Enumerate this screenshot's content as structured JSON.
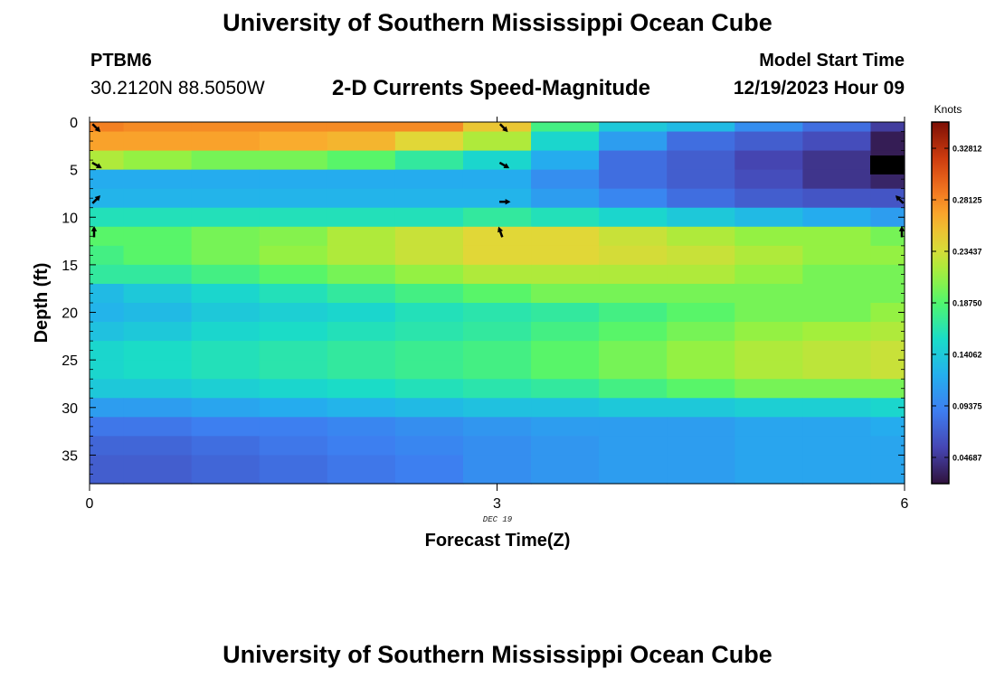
{
  "header": {
    "title": "University of Southern Mississippi Ocean Cube",
    "station": "PTBM6",
    "coordinates": "30.2120N  88.5050W",
    "subtitle": "2-D Currents Speed-Magnitude",
    "model_start_label": "Model Start Time",
    "model_start_value": "12/19/2023 Hour 09"
  },
  "footer": {
    "title": "University of Southern Mississippi Ocean Cube"
  },
  "chart_data": {
    "type": "heatmap",
    "title": "2-D Currents Speed-Magnitude",
    "xlabel": "Forecast Time(Z)",
    "ylabel": "Depth (ft)",
    "date_label": "DEC 19",
    "xlim": [
      0,
      6
    ],
    "ylim": [
      38,
      0
    ],
    "x_ticks": [
      0,
      3,
      6
    ],
    "x_tick_labels": [
      "0",
      "3",
      "6"
    ],
    "y_ticks": [
      0,
      5,
      10,
      15,
      20,
      25,
      30,
      35
    ],
    "y_tick_labels": [
      "0",
      "5",
      "10",
      "15",
      "20",
      "25",
      "30",
      "35"
    ],
    "time_columns": [
      0,
      0.5,
      1,
      1.5,
      2,
      2.5,
      3,
      3.5,
      4,
      4.5,
      5,
      5.5,
      6
    ],
    "depth_rows": [
      {
        "depth": 0,
        "values": [
          0.285,
          0.28,
          0.28,
          0.28,
          0.28,
          0.28,
          0.25,
          0.18,
          0.14,
          0.13,
          0.1,
          0.08,
          0.05
        ]
      },
      {
        "depth": 2,
        "values": [
          0.27,
          0.27,
          0.27,
          0.265,
          0.26,
          0.24,
          0.22,
          0.15,
          0.11,
          0.08,
          0.07,
          0.06,
          0.03
        ]
      },
      {
        "depth": 4,
        "values": [
          0.22,
          0.21,
          0.2,
          0.2,
          0.19,
          0.17,
          0.15,
          0.12,
          0.08,
          0.07,
          0.055,
          0.045,
          0.03
        ]
      },
      {
        "depth": 6,
        "values": [
          0.12,
          0.12,
          0.12,
          0.12,
          0.12,
          0.12,
          0.12,
          0.1,
          0.08,
          0.07,
          0.06,
          0.045,
          0.035
        ]
      },
      {
        "depth": 8,
        "values": [
          0.125,
          0.125,
          0.125,
          0.125,
          0.125,
          0.125,
          0.125,
          0.11,
          0.095,
          0.08,
          0.07,
          0.065,
          0.065
        ]
      },
      {
        "depth": 10,
        "values": [
          0.16,
          0.16,
          0.16,
          0.16,
          0.16,
          0.16,
          0.17,
          0.16,
          0.15,
          0.14,
          0.13,
          0.12,
          0.11
        ]
      },
      {
        "depth": 12,
        "values": [
          0.19,
          0.19,
          0.2,
          0.205,
          0.22,
          0.23,
          0.24,
          0.24,
          0.23,
          0.22,
          0.21,
          0.21,
          0.2
        ]
      },
      {
        "depth": 14,
        "values": [
          0.18,
          0.19,
          0.2,
          0.21,
          0.22,
          0.23,
          0.24,
          0.24,
          0.235,
          0.23,
          0.22,
          0.21,
          0.21
        ]
      },
      {
        "depth": 16,
        "values": [
          0.17,
          0.17,
          0.18,
          0.19,
          0.2,
          0.21,
          0.22,
          0.22,
          0.22,
          0.22,
          0.21,
          0.2,
          0.2
        ]
      },
      {
        "depth": 18,
        "values": [
          0.13,
          0.14,
          0.15,
          0.16,
          0.17,
          0.18,
          0.19,
          0.2,
          0.2,
          0.2,
          0.2,
          0.2,
          0.2
        ]
      },
      {
        "depth": 20,
        "values": [
          0.125,
          0.13,
          0.14,
          0.145,
          0.15,
          0.16,
          0.165,
          0.17,
          0.18,
          0.19,
          0.2,
          0.2,
          0.21
        ]
      },
      {
        "depth": 22,
        "values": [
          0.135,
          0.14,
          0.15,
          0.155,
          0.16,
          0.165,
          0.17,
          0.18,
          0.19,
          0.2,
          0.21,
          0.215,
          0.22
        ]
      },
      {
        "depth": 24,
        "values": [
          0.15,
          0.155,
          0.16,
          0.165,
          0.17,
          0.175,
          0.18,
          0.19,
          0.2,
          0.21,
          0.22,
          0.225,
          0.23
        ]
      },
      {
        "depth": 26,
        "values": [
          0.15,
          0.155,
          0.16,
          0.165,
          0.17,
          0.175,
          0.18,
          0.19,
          0.2,
          0.21,
          0.22,
          0.225,
          0.23
        ]
      },
      {
        "depth": 28,
        "values": [
          0.14,
          0.14,
          0.145,
          0.15,
          0.155,
          0.16,
          0.165,
          0.17,
          0.18,
          0.19,
          0.2,
          0.2,
          0.2
        ]
      },
      {
        "depth": 30,
        "values": [
          0.11,
          0.11,
          0.115,
          0.12,
          0.125,
          0.13,
          0.135,
          0.135,
          0.14,
          0.14,
          0.145,
          0.145,
          0.15
        ]
      },
      {
        "depth": 32,
        "values": [
          0.085,
          0.085,
          0.09,
          0.09,
          0.095,
          0.1,
          0.105,
          0.11,
          0.11,
          0.11,
          0.115,
          0.115,
          0.12
        ]
      },
      {
        "depth": 34,
        "values": [
          0.075,
          0.075,
          0.08,
          0.085,
          0.09,
          0.095,
          0.1,
          0.105,
          0.11,
          0.11,
          0.115,
          0.115,
          0.115
        ]
      },
      {
        "depth": 36,
        "values": [
          0.07,
          0.07,
          0.075,
          0.08,
          0.085,
          0.09,
          0.1,
          0.105,
          0.11,
          0.11,
          0.115,
          0.115,
          0.115
        ]
      }
    ],
    "vectors": [
      {
        "time": 0,
        "depth": 0,
        "direction_deg": 135
      },
      {
        "time": 0,
        "depth": 4,
        "direction_deg": 120
      },
      {
        "time": 0,
        "depth": 8,
        "direction_deg": 45
      },
      {
        "time": 0,
        "depth": 11.5,
        "direction_deg": 0
      },
      {
        "time": 3,
        "depth": 0,
        "direction_deg": 135
      },
      {
        "time": 3,
        "depth": 4,
        "direction_deg": 120
      },
      {
        "time": 3,
        "depth": 8,
        "direction_deg": 90
      },
      {
        "time": 3,
        "depth": 11.5,
        "direction_deg": 340
      },
      {
        "time": 6,
        "depth": 4,
        "direction_deg": 0
      },
      {
        "time": 6,
        "depth": 8,
        "direction_deg": 315
      },
      {
        "time": 6,
        "depth": 11.5,
        "direction_deg": 0
      }
    ],
    "colorbar": {
      "label": "Knots",
      "range": [
        0.023,
        0.352
      ],
      "ticks": [
        0.04687,
        0.09375,
        0.14062,
        0.1875,
        0.23437,
        0.28125,
        0.32812
      ],
      "tick_labels": [
        "0.04687",
        "0.09375",
        "0.14062",
        "0.18750",
        "0.23437",
        "0.28125",
        "0.32812"
      ]
    }
  }
}
